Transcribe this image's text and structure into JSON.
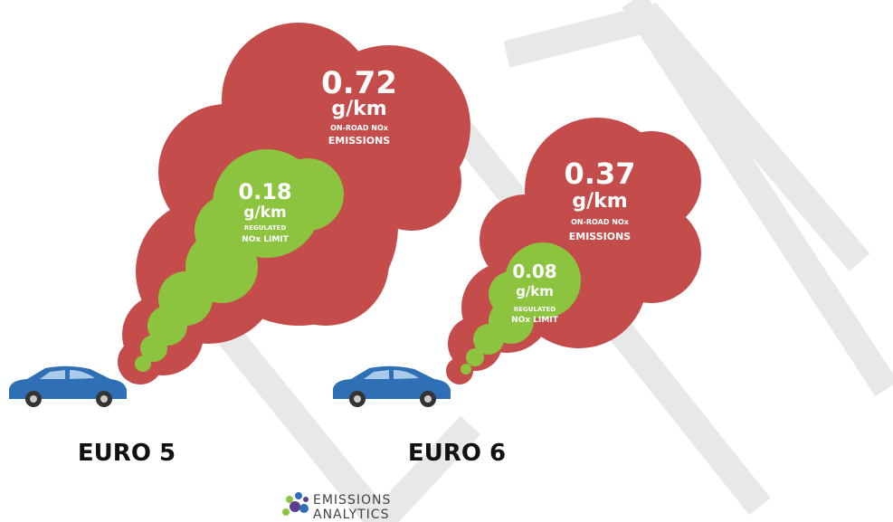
{
  "groups": [
    {
      "label": "EURO 5",
      "on_road": {
        "value": "0.72",
        "unit": "g/km",
        "caption_1": "ON-ROAD NOx",
        "caption_2": "EMISSIONS"
      },
      "limit": {
        "value": "0.18",
        "unit": "g/km",
        "caption_1": "REGULATED",
        "caption_2": "NOx LIMIT"
      }
    },
    {
      "label": "EURO 6",
      "on_road": {
        "value": "0.37",
        "unit": "g/km",
        "caption_1": "ON-ROAD NOx",
        "caption_2": "EMISSIONS"
      },
      "limit": {
        "value": "0.08",
        "unit": "g/km",
        "caption_1": "REGULATED",
        "caption_2": "NOx LIMIT"
      }
    }
  ],
  "logo": {
    "line_1": "EMISSIONS",
    "line_2": "ANALYTICS"
  }
}
